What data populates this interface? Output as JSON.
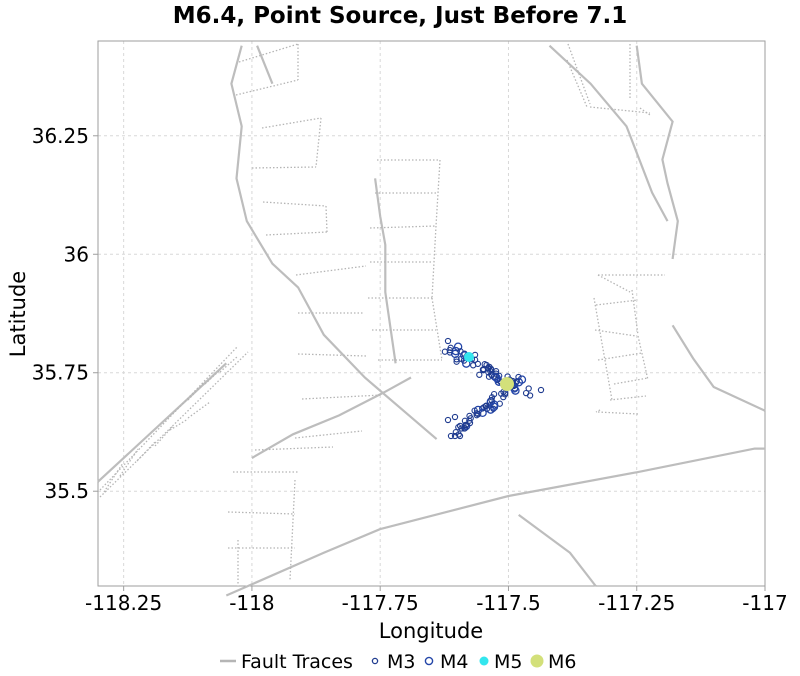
{
  "chart_data": {
    "type": "scatter",
    "title": "M6.4, Point Source, Just Before 7.1",
    "xlabel": "Longitude",
    "ylabel": "Latitude",
    "xlim": [
      -118.3,
      -117.0
    ],
    "ylim": [
      35.3,
      36.45
    ],
    "x_ticks": [
      -118.25,
      -118.0,
      -117.75,
      -117.5,
      -117.25,
      -117.0
    ],
    "x_tick_labels": [
      "-118.25",
      "-118",
      "-117.75",
      "-117.5",
      "-117.25",
      "-117"
    ],
    "y_ticks": [
      35.5,
      35.75,
      36.0,
      36.25
    ],
    "y_tick_labels": [
      "35.5",
      "35.75",
      "36",
      "36.25"
    ],
    "grid": true,
    "legend_position": "bottom-center",
    "colors": {
      "fault": "#bdbdbd",
      "m3": "#1f3b8f",
      "m4": "#2446a8",
      "m5": "#33e6ee",
      "m6": "#d3e07a"
    },
    "legend": [
      {
        "name": "Fault Traces",
        "symbol": "line"
      },
      {
        "name": "M3",
        "symbol": "small-open-circle"
      },
      {
        "name": "M4",
        "symbol": "open-circle"
      },
      {
        "name": "M5",
        "symbol": "filled-circle"
      },
      {
        "name": "M6",
        "symbol": "large-filled-circle"
      }
    ],
    "fault_traces": [
      [
        [
          -118.3,
          35.52
        ],
        [
          -118.05,
          35.77
        ]
      ],
      [
        [
          -117.99,
          36.44
        ],
        [
          -117.96,
          36.36
        ]
      ],
      [
        [
          -118.02,
          36.44
        ],
        [
          -118.04,
          36.36
        ],
        [
          -118.02,
          36.27
        ],
        [
          -118.03,
          36.16
        ],
        [
          -118.01,
          36.07
        ],
        [
          -117.96,
          35.98
        ],
        [
          -117.91,
          35.93
        ],
        [
          -117.86,
          35.83
        ],
        [
          -117.78,
          35.74
        ],
        [
          -117.64,
          35.61
        ]
      ],
      [
        [
          -117.76,
          36.16
        ],
        [
          -117.75,
          36.08
        ],
        [
          -117.74,
          36.02
        ],
        [
          -117.74,
          35.92
        ],
        [
          -117.72,
          35.77
        ]
      ],
      [
        [
          -118.0,
          35.57
        ],
        [
          -117.92,
          35.62
        ],
        [
          -117.83,
          35.66
        ],
        [
          -117.74,
          35.71
        ],
        [
          -117.69,
          35.74
        ]
      ],
      [
        [
          -118.05,
          35.28
        ],
        [
          -117.86,
          35.37
        ],
        [
          -117.75,
          35.42
        ],
        [
          -117.5,
          35.49
        ],
        [
          -117.25,
          35.54
        ],
        [
          -117.02,
          35.59
        ],
        [
          -117.0,
          35.59
        ]
      ],
      [
        [
          -117.42,
          36.44
        ],
        [
          -117.34,
          36.36
        ],
        [
          -117.27,
          36.27
        ],
        [
          -117.22,
          36.13
        ],
        [
          -117.19,
          36.07
        ]
      ],
      [
        [
          -117.25,
          36.44
        ],
        [
          -117.24,
          36.36
        ],
        [
          -117.18,
          36.28
        ],
        [
          -117.2,
          36.2
        ],
        [
          -117.19,
          36.15
        ],
        [
          -117.17,
          36.07
        ],
        [
          -117.18,
          35.99
        ]
      ],
      [
        [
          -117.18,
          35.85
        ],
        [
          -117.14,
          35.78
        ],
        [
          -117.1,
          35.72
        ],
        [
          -117.0,
          35.67
        ]
      ],
      [
        [
          -117.48,
          35.45
        ],
        [
          -117.38,
          35.37
        ],
        [
          -117.33,
          35.3
        ]
      ]
    ]
  }
}
